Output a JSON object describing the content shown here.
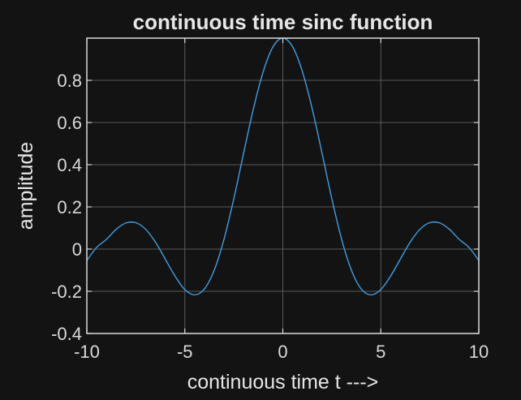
{
  "chart_data": {
    "type": "line",
    "title": "continuous time sinc function",
    "xlabel": "continuous time t --->",
    "ylabel": "amplitude",
    "xlim": [
      -10,
      10
    ],
    "ylim": [
      -0.4,
      1
    ],
    "xticks": [
      -10,
      -5,
      0,
      5,
      10
    ],
    "xtick_labels": [
      "-10",
      "-5",
      "0",
      "5",
      "10"
    ],
    "yticks": [
      -0.4,
      -0.2,
      0,
      0.2,
      0.4,
      0.6,
      0.8
    ],
    "ytick_labels": [
      "-0.4",
      "-0.2",
      "0",
      "0.2",
      "0.4",
      "0.6",
      "0.8"
    ],
    "grid": true,
    "series": [
      {
        "x": [
          -10,
          -9.5,
          -9,
          -8.5,
          -8,
          -7.5,
          -7,
          -6.5,
          -6,
          -5.5,
          -5,
          -4.5,
          -4,
          -3.5,
          -3,
          -2.5,
          -2,
          -1.5,
          -1,
          -0.5,
          0,
          0.5,
          1,
          1.5,
          2,
          2.5,
          3,
          3.5,
          4,
          4.5,
          5,
          5.5,
          6,
          6.5,
          7,
          7.5,
          8,
          8.5,
          9,
          9.5,
          10
        ],
        "y": [
          -0.054,
          0.008,
          0.046,
          0.094,
          0.124,
          0.125,
          0.094,
          0.033,
          -0.047,
          -0.128,
          -0.192,
          -0.217,
          -0.189,
          -0.1,
          0.047,
          0.239,
          0.455,
          0.665,
          0.841,
          0.959,
          1.0,
          0.959,
          0.841,
          0.665,
          0.455,
          0.239,
          0.047,
          -0.1,
          -0.189,
          -0.217,
          -0.192,
          -0.128,
          -0.047,
          0.033,
          0.094,
          0.125,
          0.124,
          0.094,
          0.046,
          0.008,
          -0.054
        ],
        "color": "#3d9fe6"
      }
    ]
  },
  "colors": {
    "background": "#131313",
    "axes_box": "#d9d9d9",
    "grid": "#5a5a5a",
    "line": "#3d9fe6"
  }
}
